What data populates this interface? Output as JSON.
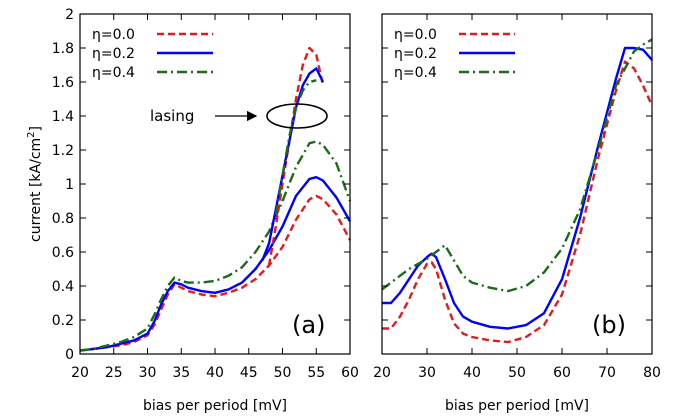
{
  "chart_data": [
    {
      "type": "line",
      "panel_label": "(a)",
      "xlabel": "bias per period [mV]",
      "ylabel": "current [kA/cm",
      "ylabel_sup": "2",
      "ylabel_tail": "]",
      "xlim": [
        20,
        60
      ],
      "ylim": [
        0,
        2
      ],
      "xticks": [
        "20",
        "25",
        "30",
        "35",
        "40",
        "45",
        "50",
        "55",
        "60"
      ],
      "yticks": [
        "0",
        "0.2",
        "0.4",
        "0.6",
        "0.8",
        "1",
        "1.2",
        "1.4",
        "1.6",
        "1.8",
        "2"
      ],
      "legend_position": "top-left",
      "annotation": {
        "text": "lasing",
        "ellipse_center": [
          54.5,
          1.4
        ]
      },
      "series": [
        {
          "name": "η=0.0",
          "color": "#e41a1c",
          "dash": "dashed",
          "branch": "lower",
          "x": [
            20,
            22,
            24,
            26,
            28,
            30,
            31,
            32,
            33,
            34,
            35,
            36,
            37,
            38,
            40,
            42,
            44,
            46,
            48,
            50,
            52,
            54,
            55,
            56,
            58,
            60
          ],
          "y": [
            0.02,
            0.03,
            0.04,
            0.05,
            0.07,
            0.11,
            0.17,
            0.26,
            0.35,
            0.41,
            0.39,
            0.37,
            0.36,
            0.35,
            0.34,
            0.36,
            0.39,
            0.44,
            0.52,
            0.63,
            0.79,
            0.91,
            0.93,
            0.91,
            0.82,
            0.67
          ]
        },
        {
          "name": "η=0.2",
          "color": "#0000ff",
          "dash": "solid",
          "branch": "lower",
          "x": [
            20,
            22,
            24,
            26,
            28,
            30,
            31,
            32,
            33,
            34,
            35,
            36,
            37,
            38,
            40,
            42,
            44,
            46,
            48,
            50,
            52,
            54,
            55,
            56,
            58,
            60
          ],
          "y": [
            0.02,
            0.03,
            0.04,
            0.06,
            0.08,
            0.12,
            0.19,
            0.29,
            0.37,
            0.42,
            0.41,
            0.39,
            0.38,
            0.37,
            0.36,
            0.38,
            0.42,
            0.5,
            0.61,
            0.75,
            0.93,
            1.03,
            1.04,
            1.02,
            0.92,
            0.78
          ]
        },
        {
          "name": "η=0.4",
          "color": "#1a6b1a",
          "dash": "dashdot",
          "branch": "lower",
          "x": [
            20,
            22,
            24,
            26,
            28,
            30,
            31,
            32,
            33,
            34,
            35,
            36,
            37,
            38,
            40,
            42,
            44,
            46,
            48,
            50,
            52,
            54,
            55,
            56,
            58,
            60
          ],
          "y": [
            0.02,
            0.03,
            0.05,
            0.07,
            0.1,
            0.15,
            0.23,
            0.32,
            0.4,
            0.45,
            0.43,
            0.42,
            0.42,
            0.42,
            0.43,
            0.46,
            0.51,
            0.6,
            0.72,
            0.9,
            1.1,
            1.24,
            1.25,
            1.23,
            1.12,
            0.9
          ]
        },
        {
          "name": "η=0.0",
          "color": "#e41a1c",
          "dash": "dashed",
          "branch": "upper",
          "x": [
            48,
            49,
            50,
            51,
            52,
            53,
            54,
            55,
            56
          ],
          "y": [
            0.52,
            0.75,
            1.0,
            1.25,
            1.5,
            1.7,
            1.8,
            1.76,
            1.58
          ]
        },
        {
          "name": "η=0.2",
          "color": "#0000ff",
          "dash": "solid",
          "branch": "upper",
          "x": [
            47,
            48,
            49,
            50,
            51,
            52,
            53,
            54,
            55,
            56
          ],
          "y": [
            0.55,
            0.65,
            0.85,
            1.05,
            1.25,
            1.45,
            1.58,
            1.65,
            1.68,
            1.6
          ]
        },
        {
          "name": "η=0.4",
          "color": "#1a6b1a",
          "dash": "dashdot",
          "branch": "upper",
          "x": [
            49,
            50,
            51,
            52,
            53,
            54,
            55
          ],
          "y": [
            0.82,
            1.05,
            1.28,
            1.45,
            1.55,
            1.6,
            1.61
          ]
        }
      ]
    },
    {
      "type": "line",
      "panel_label": "(b)",
      "xlabel": "bias per period [mV]",
      "xlim": [
        20,
        80
      ],
      "ylim": [
        0,
        2
      ],
      "xticks": [
        "20",
        "30",
        "40",
        "50",
        "60",
        "70",
        "80"
      ],
      "legend_position": "top-left",
      "series": [
        {
          "name": "η=0.0",
          "color": "#e41a1c",
          "dash": "dashed",
          "x": [
            20,
            22,
            24,
            26,
            28,
            30,
            31,
            32,
            34,
            36,
            38,
            40,
            44,
            48,
            52,
            56,
            60,
            64,
            68,
            72,
            74,
            76,
            78,
            80
          ],
          "y": [
            0.15,
            0.15,
            0.22,
            0.32,
            0.44,
            0.53,
            0.54,
            0.5,
            0.32,
            0.18,
            0.12,
            0.1,
            0.08,
            0.07,
            0.1,
            0.17,
            0.35,
            0.7,
            1.15,
            1.55,
            1.72,
            1.68,
            1.58,
            1.46
          ]
        },
        {
          "name": "η=0.2",
          "color": "#0000ff",
          "dash": "solid",
          "x": [
            20,
            22,
            24,
            26,
            28,
            30,
            31,
            32,
            34,
            36,
            38,
            40,
            44,
            48,
            52,
            56,
            60,
            64,
            68,
            72,
            74,
            76,
            78,
            80
          ],
          "y": [
            0.3,
            0.3,
            0.36,
            0.44,
            0.52,
            0.57,
            0.59,
            0.57,
            0.44,
            0.3,
            0.22,
            0.19,
            0.16,
            0.15,
            0.17,
            0.24,
            0.44,
            0.8,
            1.22,
            1.62,
            1.8,
            1.8,
            1.79,
            1.73
          ]
        },
        {
          "name": "η=0.4",
          "color": "#1a6b1a",
          "dash": "dashdot",
          "x": [
            20,
            22,
            24,
            26,
            28,
            30,
            32,
            34,
            36,
            38,
            40,
            44,
            48,
            52,
            56,
            60,
            64,
            68,
            72,
            76,
            78,
            80
          ],
          "y": [
            0.38,
            0.42,
            0.46,
            0.5,
            0.53,
            0.56,
            0.6,
            0.64,
            0.55,
            0.46,
            0.42,
            0.39,
            0.37,
            0.4,
            0.48,
            0.62,
            0.85,
            1.2,
            1.58,
            1.78,
            1.82,
            1.85
          ]
        }
      ]
    }
  ]
}
